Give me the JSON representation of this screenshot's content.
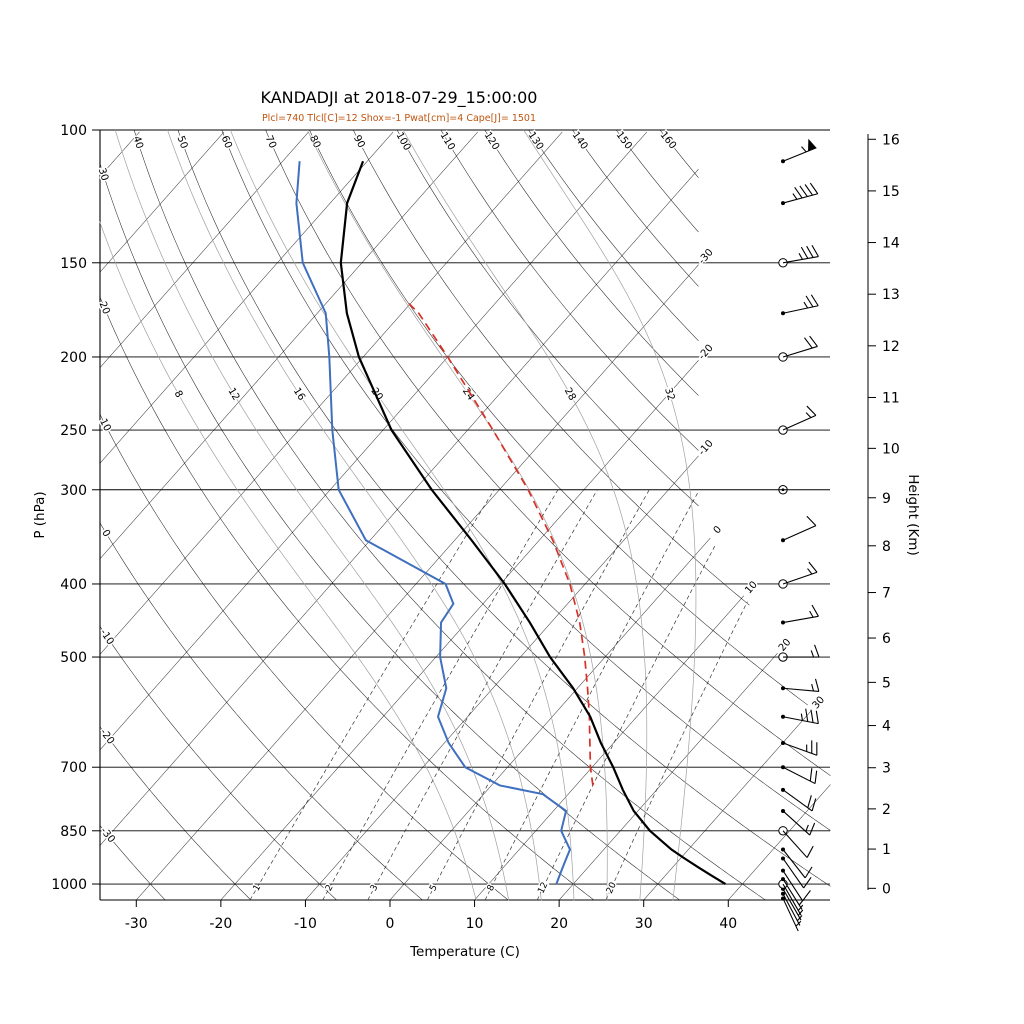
{
  "header": {
    "title": "KANDADJI at 2018-07-29_15:00:00",
    "subtitle": "Plcl=740 Tlcl[C]=12 Shox=-1 Pwat[cm]=4 Cape[J]= 1501"
  },
  "colors": {
    "temperature": "#000000",
    "dewpoint": "#3f6fbf",
    "parcel": "#d93025",
    "moist_adiabat": "#a0a0a0",
    "grid": "#000000",
    "subtitle": "#c05511"
  },
  "chart_data": {
    "type": "skewt-logp-sounding",
    "station": "KANDADJI",
    "time": "2018-07-29_15:00:00",
    "params": {
      "Plcl": 740,
      "Tlcl_C": 12,
      "Shox": -1,
      "Pwat_cm": 4,
      "Cape_J": 1501
    },
    "axes": {
      "pressure": {
        "label": "P (hPa)",
        "scale": "log",
        "min": 100,
        "max": 1050,
        "ticks": [
          100,
          150,
          200,
          250,
          300,
          400,
          500,
          700,
          850,
          1000
        ]
      },
      "temperature": {
        "label": "Temperature (C)",
        "ticks": [
          -30,
          -20,
          -10,
          0,
          10,
          20,
          30,
          40
        ]
      },
      "height": {
        "label": "Height (Km)",
        "ticks": [
          0,
          1,
          2,
          3,
          4,
          5,
          6,
          7,
          8,
          9,
          10,
          11,
          12,
          13,
          14,
          15,
          16
        ]
      }
    },
    "grid": {
      "isotherms": {
        "min": -120,
        "max": 40,
        "step": 10,
        "labeled": [
          -30,
          -20,
          -10,
          0,
          10,
          20,
          30
        ]
      },
      "dry_adiabats": {
        "min": -30,
        "max": 160,
        "step": 10
      },
      "moist_adiabats": [
        8,
        12,
        16,
        20,
        24,
        28,
        32
      ],
      "mixing_ratio_g_kg": [
        1,
        2,
        3,
        5,
        8,
        12,
        20
      ]
    },
    "temperature_profile_p_T": [
      [
        1000,
        38
      ],
      [
        975,
        35.5
      ],
      [
        950,
        33
      ],
      [
        925,
        30.5
      ],
      [
        900,
        28
      ],
      [
        850,
        23.5
      ],
      [
        800,
        19.5
      ],
      [
        750,
        16
      ],
      [
        700,
        12.5
      ],
      [
        650,
        8.5
      ],
      [
        600,
        4.5
      ],
      [
        550,
        -0.5
      ],
      [
        500,
        -6.5
      ],
      [
        450,
        -12.5
      ],
      [
        400,
        -19.5
      ],
      [
        350,
        -28
      ],
      [
        300,
        -38
      ],
      [
        250,
        -49
      ],
      [
        200,
        -60.5
      ],
      [
        175,
        -66.5
      ],
      [
        150,
        -72.5
      ],
      [
        125,
        -78
      ],
      [
        110,
        -80.5
      ]
    ],
    "dewpoint_profile_p_Td": [
      [
        1000,
        18
      ],
      [
        975,
        17.5
      ],
      [
        950,
        17
      ],
      [
        925,
        16.5
      ],
      [
        900,
        16
      ],
      [
        850,
        13
      ],
      [
        800,
        11.5
      ],
      [
        760,
        7
      ],
      [
        740,
        1
      ],
      [
        700,
        -5
      ],
      [
        650,
        -9.5
      ],
      [
        600,
        -13.5
      ],
      [
        550,
        -15.5
      ],
      [
        500,
        -19.5
      ],
      [
        450,
        -23
      ],
      [
        425,
        -23.5
      ],
      [
        400,
        -26.5
      ],
      [
        350,
        -40.5
      ],
      [
        300,
        -49
      ],
      [
        250,
        -56
      ],
      [
        200,
        -64
      ],
      [
        175,
        -69
      ],
      [
        150,
        -77
      ],
      [
        125,
        -84
      ],
      [
        110,
        -88
      ]
    ],
    "parcel_profile_p_T": [
      [
        740,
        12
      ],
      [
        700,
        9.8
      ],
      [
        650,
        7.2
      ],
      [
        600,
        4.4
      ],
      [
        550,
        1.2
      ],
      [
        500,
        -2.4
      ],
      [
        450,
        -6.6
      ],
      [
        400,
        -11.8
      ],
      [
        350,
        -18.4
      ],
      [
        300,
        -26.6
      ],
      [
        250,
        -37
      ],
      [
        200,
        -50
      ],
      [
        175,
        -58
      ],
      [
        168,
        -61
      ]
    ],
    "wind_barbs": [
      {
        "p": 1045,
        "kt": 4,
        "ang": 155,
        "marker": "dot"
      },
      {
        "p": 1030,
        "kt": 5,
        "ang": 152,
        "marker": "dot"
      },
      {
        "p": 1015,
        "kt": 5,
        "ang": 150,
        "marker": "dot"
      },
      {
        "p": 1000,
        "kt": 5,
        "ang": 150,
        "marker": "open"
      },
      {
        "p": 985,
        "kt": 7,
        "ang": 148,
        "marker": "dot"
      },
      {
        "p": 960,
        "kt": 8,
        "ang": 147,
        "marker": "dot"
      },
      {
        "p": 925,
        "kt": 10,
        "ang": 145,
        "marker": "dot"
      },
      {
        "p": 900,
        "kt": 10,
        "ang": 142,
        "marker": "dot"
      },
      {
        "p": 850,
        "kt": 10,
        "ang": 138,
        "marker": "open"
      },
      {
        "p": 800,
        "kt": 15,
        "ang": 132,
        "marker": "dot"
      },
      {
        "p": 750,
        "kt": 20,
        "ang": 126,
        "marker": "dot"
      },
      {
        "p": 700,
        "kt": 20,
        "ang": 117,
        "marker": "dot"
      },
      {
        "p": 650,
        "kt": 25,
        "ang": 110,
        "marker": "dot"
      },
      {
        "p": 600,
        "kt": 35,
        "ang": 101,
        "marker": "dot"
      },
      {
        "p": 550,
        "kt": 15,
        "ang": 95,
        "marker": "dot"
      },
      {
        "p": 500,
        "kt": 15,
        "ang": 90,
        "marker": "open"
      },
      {
        "p": 450,
        "kt": 15,
        "ang": 80,
        "marker": "dot"
      },
      {
        "p": 400,
        "kt": 15,
        "ang": 71,
        "marker": "open"
      },
      {
        "p": 350,
        "kt": 10,
        "ang": 66,
        "marker": "dot"
      },
      {
        "p": 300,
        "kt": 2,
        "ang": 0,
        "marker": "dotted"
      },
      {
        "p": 250,
        "kt": 15,
        "ang": 66,
        "marker": "open"
      },
      {
        "p": 200,
        "kt": 20,
        "ang": 73,
        "marker": "open"
      },
      {
        "p": 175,
        "kt": 25,
        "ang": 78,
        "marker": "dot"
      },
      {
        "p": 150,
        "kt": 35,
        "ang": 80,
        "marker": "open"
      },
      {
        "p": 125,
        "kt": 45,
        "ang": 75,
        "marker": "dot"
      },
      {
        "p": 110,
        "kt": 55,
        "ang": 68,
        "marker": "dot"
      }
    ]
  }
}
